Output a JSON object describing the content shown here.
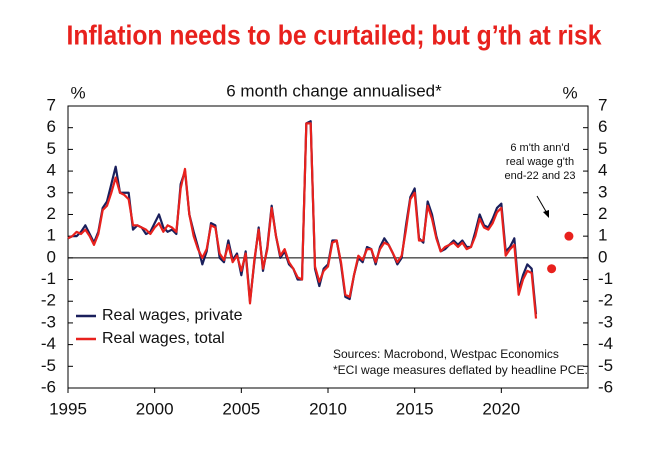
{
  "chart_data": {
    "type": "line",
    "title": "Inflation needs to be curtailed; but g’th at risk",
    "subtitle": "6 month change annualised*",
    "y_unit_left": "%",
    "y_unit_right": "%",
    "x": [
      1995,
      1995.25,
      1995.5,
      1995.75,
      1996,
      1996.25,
      1996.5,
      1996.75,
      1997,
      1997.25,
      1997.5,
      1997.75,
      1998,
      1998.25,
      1998.5,
      1998.75,
      1999,
      1999.25,
      1999.5,
      1999.75,
      2000,
      2000.25,
      2000.5,
      2000.75,
      2001,
      2001.25,
      2001.5,
      2001.75,
      2002,
      2002.25,
      2002.5,
      2002.75,
      2003,
      2003.25,
      2003.5,
      2003.75,
      2004,
      2004.25,
      2004.5,
      2004.75,
      2005,
      2005.25,
      2005.5,
      2005.75,
      2006,
      2006.25,
      2006.5,
      2006.75,
      2007,
      2007.25,
      2007.5,
      2007.75,
      2008,
      2008.25,
      2008.5,
      2008.75,
      2009,
      2009.25,
      2009.5,
      2009.75,
      2010,
      2010.25,
      2010.5,
      2010.75,
      2011,
      2011.25,
      2011.5,
      2011.75,
      2012,
      2012.25,
      2012.5,
      2012.75,
      2013,
      2013.25,
      2013.5,
      2013.75,
      2014,
      2014.25,
      2014.5,
      2014.75,
      2015,
      2015.25,
      2015.5,
      2015.75,
      2016,
      2016.25,
      2016.5,
      2016.75,
      2017,
      2017.25,
      2017.5,
      2017.75,
      2018,
      2018.25,
      2018.5,
      2018.75,
      2019,
      2019.25,
      2019.5,
      2019.75,
      2020,
      2020.25,
      2020.5,
      2020.75,
      2021,
      2021.25,
      2021.5,
      2021.75,
      2022
    ],
    "series": [
      {
        "name": "Real wages, private",
        "color": "#1a1f5c",
        "values": [
          0.9,
          1.0,
          1.0,
          1.2,
          1.5,
          1.1,
          0.7,
          1.2,
          2.3,
          2.6,
          3.4,
          4.2,
          3.0,
          3.0,
          3.0,
          1.3,
          1.5,
          1.4,
          1.1,
          1.2,
          1.6,
          2.0,
          1.4,
          1.2,
          1.3,
          1.1,
          3.4,
          4.0,
          2.0,
          1.2,
          0.5,
          -0.3,
          0.3,
          1.6,
          1.5,
          0.0,
          -0.2,
          0.8,
          -0.1,
          0.2,
          -0.8,
          0.3,
          -2.0,
          -0.2,
          1.4,
          -0.6,
          0.5,
          2.4,
          1.0,
          0.0,
          0.3,
          -0.3,
          -0.5,
          -1.0,
          -1.0,
          6.2,
          6.3,
          -0.5,
          -1.3,
          -0.5,
          -0.3,
          0.8,
          0.8,
          -0.3,
          -1.8,
          -1.9,
          -0.8,
          0.0,
          -0.2,
          0.5,
          0.4,
          -0.3,
          0.5,
          0.9,
          0.6,
          0.2,
          -0.3,
          0.0,
          1.5,
          2.8,
          3.2,
          0.9,
          0.7,
          2.6,
          2.0,
          1.0,
          0.3,
          0.4,
          0.6,
          0.8,
          0.6,
          0.8,
          0.5,
          0.5,
          1.2,
          2.0,
          1.5,
          1.4,
          1.8,
          2.3,
          2.5,
          0.3,
          0.5,
          0.9,
          -1.5,
          -0.8,
          -0.3,
          -0.5,
          -2.6
        ]
      },
      {
        "name": "Real wages, total",
        "color": "#e8211d",
        "values": [
          0.9,
          1.0,
          1.2,
          1.1,
          1.3,
          1.0,
          0.6,
          1.1,
          2.2,
          2.4,
          3.0,
          3.7,
          3.0,
          2.9,
          2.7,
          1.5,
          1.5,
          1.4,
          1.3,
          1.1,
          1.4,
          1.6,
          1.2,
          1.5,
          1.4,
          1.2,
          3.2,
          4.1,
          2.0,
          1.0,
          0.4,
          0.0,
          0.4,
          1.5,
          1.4,
          0.2,
          -0.1,
          0.6,
          -0.2,
          0.1,
          -0.6,
          0.2,
          -2.1,
          -0.1,
          1.3,
          -0.5,
          0.4,
          2.3,
          1.0,
          0.1,
          0.4,
          -0.2,
          -0.5,
          -0.9,
          -1.0,
          6.2,
          6.2,
          -0.4,
          -1.1,
          -0.6,
          -0.4,
          0.7,
          0.8,
          -0.2,
          -1.7,
          -1.8,
          -0.8,
          0.1,
          -0.1,
          0.4,
          0.4,
          -0.2,
          0.4,
          0.7,
          0.6,
          0.2,
          -0.2,
          0.1,
          1.3,
          2.7,
          3.0,
          0.8,
          0.8,
          2.4,
          1.8,
          0.9,
          0.3,
          0.5,
          0.6,
          0.7,
          0.5,
          0.7,
          0.4,
          0.5,
          1.0,
          1.8,
          1.4,
          1.3,
          1.6,
          2.1,
          2.3,
          0.1,
          0.4,
          0.6,
          -1.7,
          -1.0,
          -0.6,
          -0.7,
          -2.8
        ]
      }
    ],
    "markers": {
      "x": [
        2022.9,
        2023.9
      ],
      "values": [
        -0.5,
        1.0
      ],
      "color": "#e8211d"
    },
    "annotation": [
      "6 m'th ann'd",
      "real wage g'th",
      "end-22 and 23"
    ],
    "sources": [
      "Sources: Macrobond, Westpac Economics",
      "*ECI wage measures deflated by headline PCE."
    ],
    "xlim": [
      1995,
      2025
    ],
    "xticks": [
      1995,
      2000,
      2005,
      2010,
      2015,
      2020
    ],
    "ylim": [
      -6,
      7
    ],
    "yticks": [
      -6,
      -5,
      -4,
      -3,
      -2,
      -1,
      0,
      1,
      2,
      3,
      4,
      5,
      6,
      7
    ],
    "y2lim": [
      -6,
      7
    ],
    "y2ticks": [
      -6,
      -5,
      -4,
      -3,
      -2,
      -1,
      0,
      1,
      2,
      3,
      4,
      5,
      6,
      7
    ],
    "legend": "lower left"
  }
}
